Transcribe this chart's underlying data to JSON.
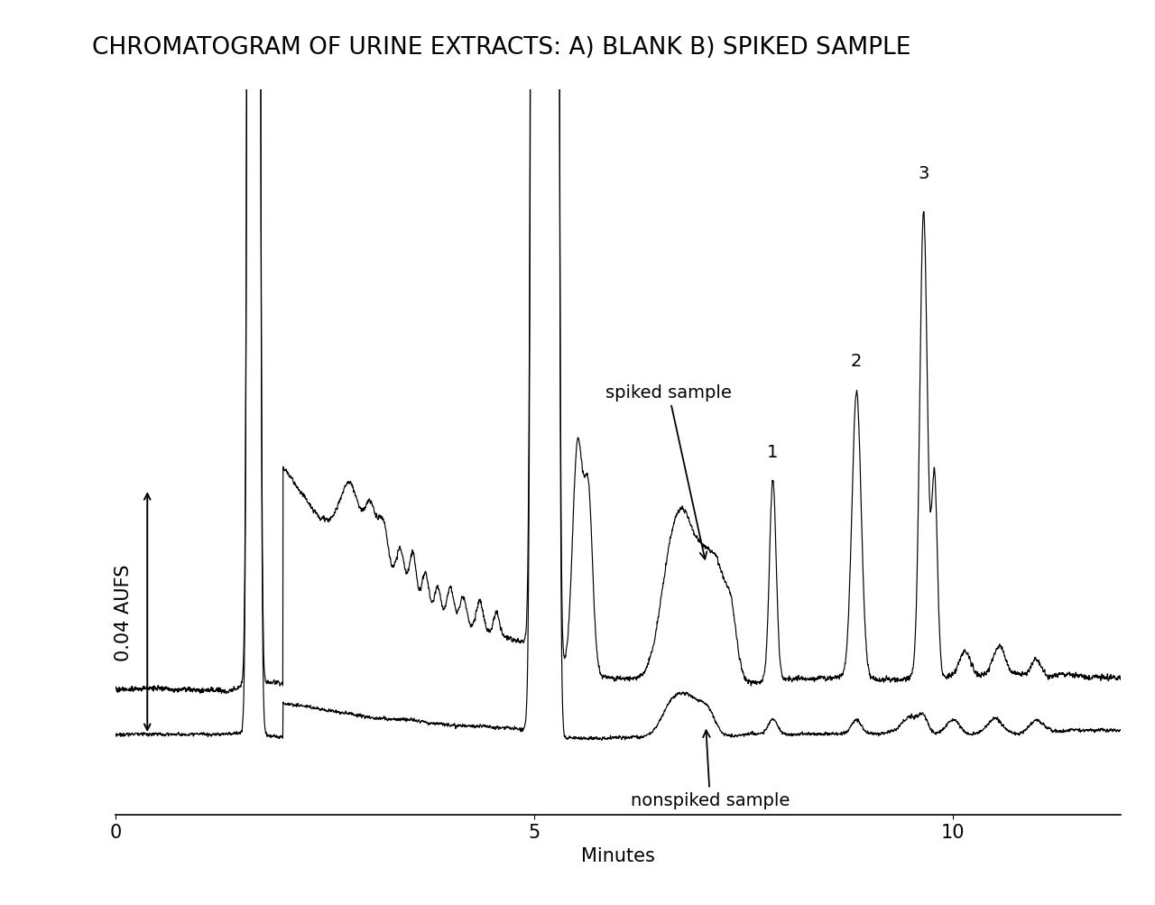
{
  "title": "CHROMATOGRAM OF URINE EXTRACTS: A) BLANK B) SPIKED SAMPLE",
  "xlabel": "Minutes",
  "ylabel": "0.04 AUFS",
  "background_color": "#ffffff",
  "text_color": "#000000",
  "xlim": [
    0.0,
    12.0
  ],
  "ylim": [
    -0.22,
    1.05
  ],
  "xticks": [
    0,
    5,
    10
  ],
  "title_fontsize": 19,
  "label_fontsize": 15,
  "annotation_fontsize": 14,
  "tick_fontsize": 15
}
